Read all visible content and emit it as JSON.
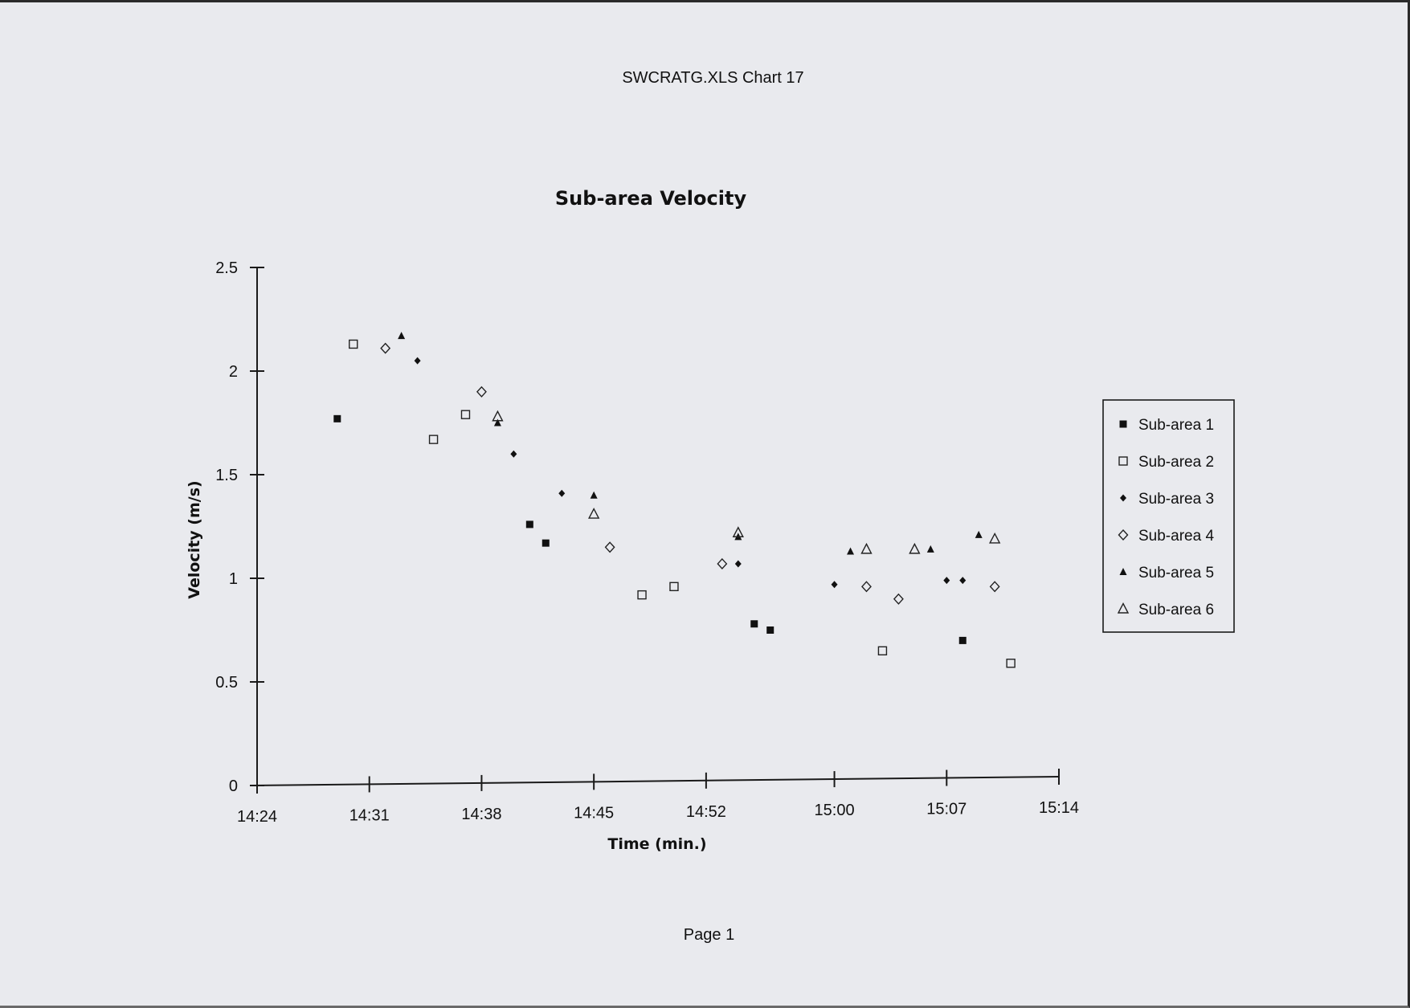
{
  "document": {
    "file_title": "SWCRATG.XLS Chart 17",
    "page_label": "Page 1"
  },
  "chart_data": {
    "type": "scatter",
    "title": "Sub-area Velocity",
    "xlabel": "Time (min.)",
    "ylabel": "Velocity (m/s)",
    "xlim": [
      "14:24",
      "15:14"
    ],
    "ylim": [
      0,
      2.5
    ],
    "x_ticks": [
      "14:24",
      "14:31",
      "14:38",
      "14:45",
      "14:52",
      "15:00",
      "15:07",
      "15:14"
    ],
    "y_ticks": [
      "0",
      "0.5",
      "1",
      "1.5",
      "2",
      "2.5"
    ],
    "grid": false,
    "legend_position": "right",
    "series": [
      {
        "name": "Sub-area 1",
        "marker": "filled-square",
        "x": [
          "14:29",
          "14:41",
          "14:42",
          "14:55",
          "14:56",
          "15:08"
        ],
        "y": [
          1.77,
          1.26,
          1.17,
          0.78,
          0.75,
          0.7
        ]
      },
      {
        "name": "Sub-area 2",
        "marker": "open-square",
        "x": [
          "14:30",
          "14:35",
          "14:37",
          "14:48",
          "14:50",
          "15:03",
          "15:11"
        ],
        "y": [
          2.13,
          1.67,
          1.79,
          0.92,
          0.96,
          0.65,
          0.59
        ]
      },
      {
        "name": "Sub-area 3",
        "marker": "filled-diamond",
        "x": [
          "14:34",
          "14:40",
          "14:43",
          "14:54",
          "15:00",
          "15:07",
          "15:08"
        ],
        "y": [
          2.05,
          1.6,
          1.41,
          1.07,
          0.97,
          0.99,
          0.99
        ]
      },
      {
        "name": "Sub-area 4",
        "marker": "open-diamond",
        "x": [
          "14:32",
          "14:38",
          "14:46",
          "14:53",
          "15:02",
          "15:04",
          "15:10"
        ],
        "y": [
          2.11,
          1.9,
          1.15,
          1.07,
          0.96,
          0.9,
          0.96
        ]
      },
      {
        "name": "Sub-area 5",
        "marker": "filled-triangle",
        "x": [
          "14:33",
          "14:39",
          "14:45",
          "14:54",
          "15:01",
          "15:06",
          "15:09"
        ],
        "y": [
          2.17,
          1.75,
          1.4,
          1.2,
          1.13,
          1.14,
          1.21
        ]
      },
      {
        "name": "Sub-area 6",
        "marker": "open-triangle",
        "x": [
          "14:39",
          "14:45",
          "14:54",
          "15:02",
          "15:05",
          "15:10"
        ],
        "y": [
          1.78,
          1.31,
          1.22,
          1.14,
          1.14,
          1.19
        ]
      }
    ]
  }
}
